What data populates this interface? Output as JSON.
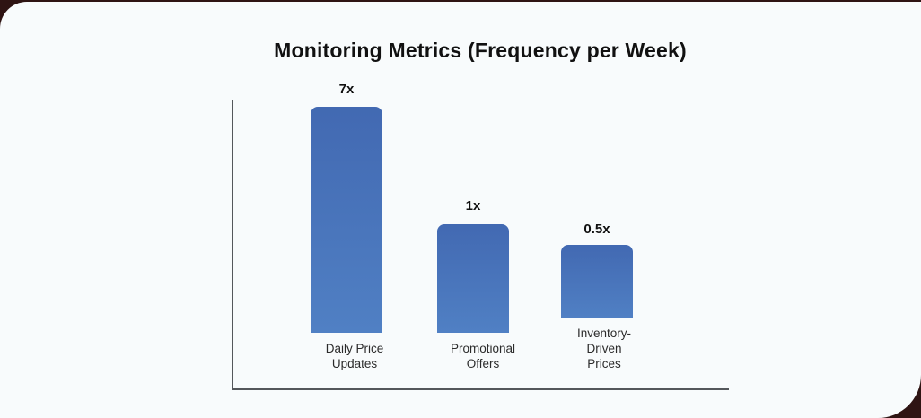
{
  "frame": {
    "background_color": "#2e1413",
    "card_color": "#f8fbfc"
  },
  "chart_data": {
    "type": "bar",
    "title": "Monitoring Metrics (Frequency per Week)",
    "categories": [
      "Daily Price Updates",
      "Promotional Offers",
      "Inventory-Driven Prices"
    ],
    "values": [
      7,
      1,
      0.5
    ],
    "value_labels": [
      "7x",
      "1x",
      "0.5x"
    ],
    "xlabel": "",
    "ylabel": "",
    "bar_color": "#4470b8",
    "axis_color": "#54575b",
    "grid": false,
    "legend_position": "none",
    "ylim": [
      0,
      7
    ],
    "note": "Value labels shown above each bar; rendered bar heights are not strictly proportional to values"
  },
  "bars": [
    {
      "value_label": "7x",
      "lines": [
        "Daily Price",
        "Updates"
      ]
    },
    {
      "value_label": "1x",
      "lines": [
        "Promotional",
        "Offers"
      ]
    },
    {
      "value_label": "0.5x",
      "lines": [
        "Inventory-",
        "Driven",
        "Prices"
      ]
    }
  ]
}
